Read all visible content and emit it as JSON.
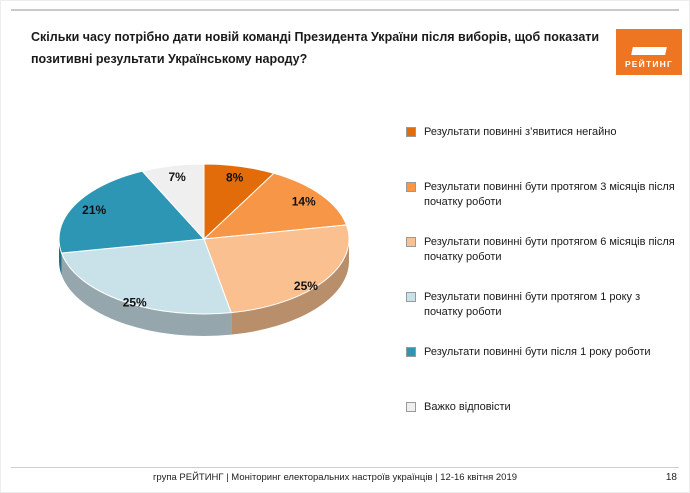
{
  "slide": {
    "title": "Скільки часу потрібно дати новій команді Президента України після виборів, щоб показати позитивні результати Українському народу?",
    "logo_text": "РЕЙТИНГ",
    "footer": "група РЕЙТИНГ | Моніторинг електоральних настроїв українців | 12-16 квітня 2019",
    "page_number": "18"
  },
  "chart_data": {
    "type": "pie",
    "style": "3d",
    "title": "Скільки часу потрібно дати новій команді Президента України після виборів, щоб показати позитивні результати Українському народу?",
    "legend_position": "right",
    "direction": "clockwise",
    "start_angle_deg": 0,
    "labels": [
      "Результати повинні з’явитися негайно",
      "Результати повинні бути протягом 3 місяців після початку роботи",
      "Результати повинні бути протягом 6 місяців після початку роботи",
      "Результати повинні бути протягом 1 року з початку роботи",
      "Результати повинні бути після 1 року роботи",
      "Важко відповісти"
    ],
    "values": [
      8,
      14,
      25,
      25,
      21,
      7
    ],
    "pct_labels": [
      "8%",
      "14%",
      "25%",
      "25%",
      "21%",
      "7%"
    ],
    "colors": [
      "#E36C0A",
      "#F79646",
      "#FAC090",
      "#C9E2EA",
      "#2D96B5",
      "#EFEFEF"
    ]
  }
}
